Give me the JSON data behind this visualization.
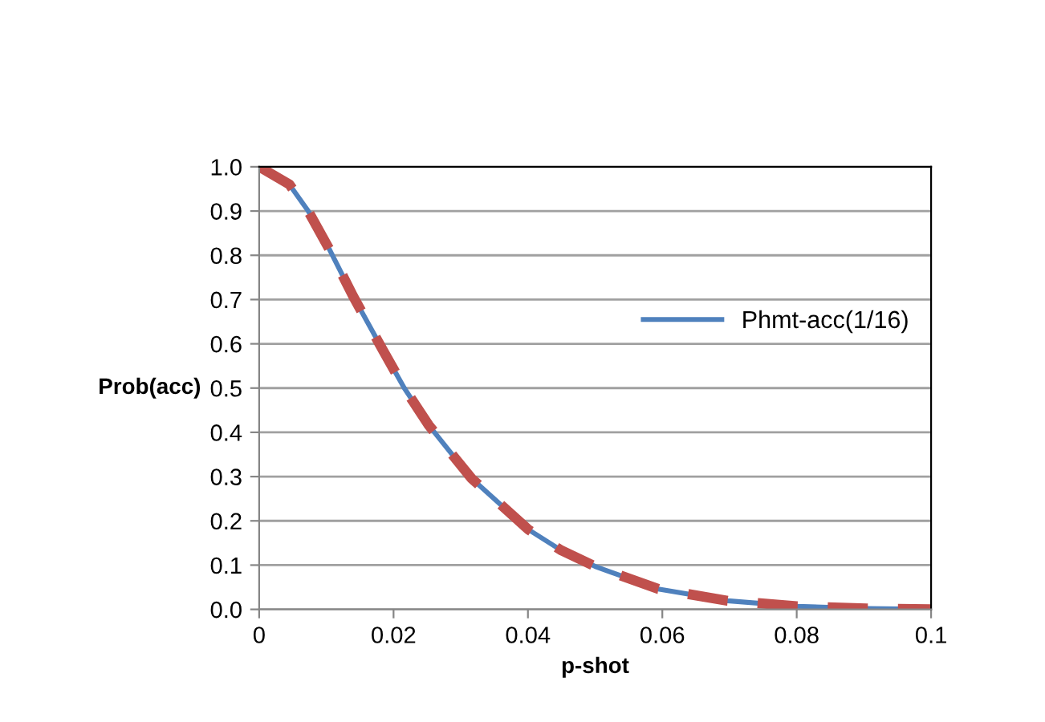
{
  "chart_data": {
    "type": "line",
    "xlabel": "p-shot",
    "ylabel": "Prob(acc)",
    "x": [
      0,
      0.0045,
      0.0073,
      0.0104,
      0.014,
      0.0184,
      0.0216,
      0.0252,
      0.0284,
      0.0316,
      0.036,
      0.04,
      0.045,
      0.05,
      0.0594,
      0.0697,
      0.08,
      0.0904,
      0.1
    ],
    "series": [
      {
        "name": "Phmt-acc(1/16)",
        "color": "#4f81bd",
        "line_style": "solid",
        "values": [
          1.0,
          0.96,
          0.9,
          0.815,
          0.707,
          0.586,
          0.5,
          0.417,
          0.356,
          0.296,
          0.236,
          0.181,
          0.133,
          0.097,
          0.046,
          0.0195,
          0.007,
          0.002,
          0.0
        ]
      },
      {
        "color": "#c0504d",
        "line_style": "dashed",
        "values": [
          1.0,
          0.96,
          0.9,
          0.815,
          0.707,
          0.586,
          0.5,
          0.417,
          0.356,
          0.296,
          0.236,
          0.181,
          0.133,
          0.097,
          0.046,
          0.0195,
          0.007,
          0.002,
          0.0
        ]
      }
    ],
    "xlim": [
      0,
      0.1
    ],
    "xticks": [
      0,
      0.02,
      0.04,
      0.06,
      0.08,
      0.1
    ],
    "ylim": [
      0,
      1.0
    ],
    "yticks": [
      {
        "value": 0,
        "label": "0.0"
      },
      {
        "value": 0.1,
        "label": "0.1"
      },
      {
        "value": 0.2,
        "label": "0.2"
      },
      {
        "value": 0.3,
        "label": "0.3"
      },
      {
        "value": 0.4,
        "label": "0.4"
      },
      {
        "value": 0.5,
        "label": "0.5"
      },
      {
        "value": 0.6,
        "label": "0.6"
      },
      {
        "value": 0.7,
        "label": "0.7"
      },
      {
        "value": 0.8,
        "label": "0.8"
      },
      {
        "value": 0.9,
        "label": "0.9"
      },
      {
        "value": 1.0,
        "label": "1.0"
      }
    ],
    "grid": "y",
    "legend": "right",
    "marker": "none"
  }
}
